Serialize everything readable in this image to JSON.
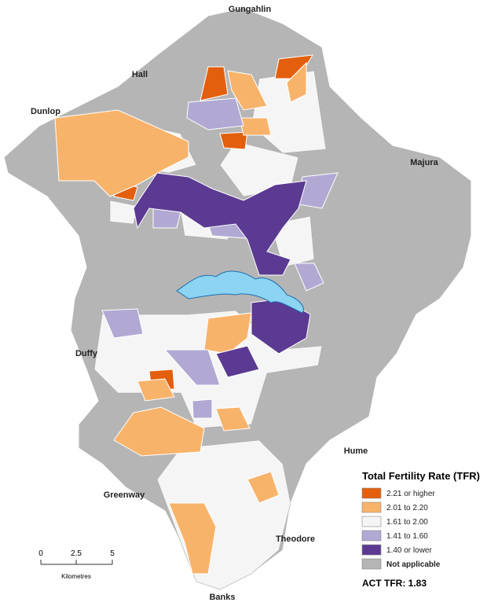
{
  "places": [
    "Gungahlin",
    "Hall",
    "Dunlop",
    "Majura",
    "Duffy",
    "Hume",
    "Greenway",
    "Theodore",
    "Banks"
  ],
  "legend": {
    "title": "Total Fertility Rate (TFR)",
    "items": [
      {
        "label": "2.21 or higher",
        "color": "#e35f0d"
      },
      {
        "label": "2.01 to 2.20",
        "color": "#f8b36b"
      },
      {
        "label": "1.61 to 2.00",
        "color": "#f5f5f5"
      },
      {
        "label": "1.41 to 1.60",
        "color": "#b1a9d3"
      },
      {
        "label": "1.40 or lower",
        "color": "#5b3a92"
      },
      {
        "label": "Not applicable",
        "color": "#b5b5b5"
      }
    ]
  },
  "act_tfr": "ACT TFR: 1.83",
  "scale": {
    "ticks": [
      "0",
      "2.5",
      "5"
    ],
    "unit": "Kilometres"
  }
}
